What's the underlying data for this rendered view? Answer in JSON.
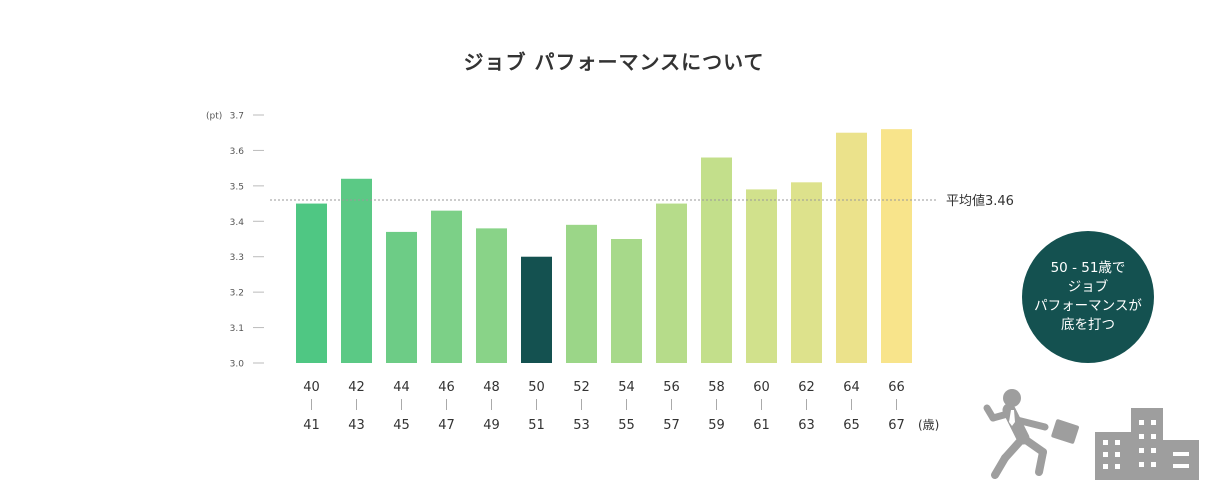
{
  "chart_data": {
    "type": "bar",
    "title": "ジョブ パフォーマンスについて",
    "ylabel": "(pt)",
    "xlabel": "(歳)",
    "ylim": [
      3.0,
      3.7
    ],
    "yticks": [
      "3.0",
      "3.1",
      "3.2",
      "3.3",
      "3.4",
      "3.5",
      "3.6",
      "3.7"
    ],
    "categories": [
      {
        "top": "40",
        "bottom": "41"
      },
      {
        "top": "42",
        "bottom": "43"
      },
      {
        "top": "44",
        "bottom": "45"
      },
      {
        "top": "46",
        "bottom": "47"
      },
      {
        "top": "48",
        "bottom": "49"
      },
      {
        "top": "50",
        "bottom": "51"
      },
      {
        "top": "52",
        "bottom": "53"
      },
      {
        "top": "54",
        "bottom": "55"
      },
      {
        "top": "56",
        "bottom": "57"
      },
      {
        "top": "58",
        "bottom": "59"
      },
      {
        "top": "60",
        "bottom": "61"
      },
      {
        "top": "62",
        "bottom": "63"
      },
      {
        "top": "64",
        "bottom": "65"
      },
      {
        "top": "66",
        "bottom": "67"
      }
    ],
    "values": [
      3.45,
      3.52,
      3.37,
      3.43,
      3.38,
      3.3,
      3.39,
      3.35,
      3.45,
      3.58,
      3.49,
      3.51,
      3.65,
      3.66
    ],
    "colors": [
      "#4fc783",
      "#5bc985",
      "#6dcc86",
      "#7cd087",
      "#89d388",
      "#145150",
      "#9bd688",
      "#a7d98a",
      "#b6dc8a",
      "#c3df8b",
      "#d1e18c",
      "#dde28c",
      "#ebe28b",
      "#f8e48b"
    ],
    "average": {
      "value": 3.46,
      "label": "平均値3.46"
    },
    "grid": false
  },
  "badge": {
    "lines": [
      "50 - 51歳で",
      "ジョブ",
      "パフォーマンスが",
      "底を打つ"
    ],
    "color": "#145150"
  },
  "illustration": {
    "icons": [
      "running-businessman-icon",
      "building-icon"
    ],
    "color": "#9e9e9e"
  }
}
